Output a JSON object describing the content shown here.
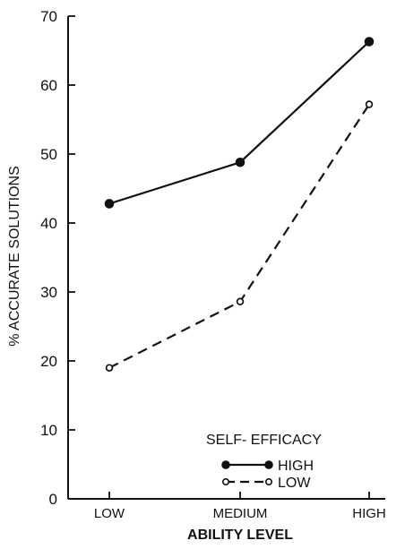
{
  "chart_data": {
    "type": "line",
    "title": "",
    "xlabel": "ABILITY LEVEL",
    "ylabel": "% ACCURATE SOLUTIONS",
    "categories": [
      "LOW",
      "MEDIUM",
      "HIGH"
    ],
    "ylim": [
      0,
      70
    ],
    "yticks": [
      0,
      10,
      20,
      30,
      40,
      50,
      60,
      70
    ],
    "grid": false,
    "legend": {
      "title": "SELF- EFFICACY",
      "placement": "lower-right"
    },
    "series": [
      {
        "name": "HIGH",
        "values": [
          42.8,
          48.8,
          66.3
        ],
        "line_style": "solid",
        "marker": "filled-circle",
        "color": "#111111"
      },
      {
        "name": "LOW",
        "values": [
          19.0,
          28.6,
          57.2
        ],
        "line_style": "dashed",
        "marker": "open-circle",
        "color": "#111111"
      }
    ]
  }
}
